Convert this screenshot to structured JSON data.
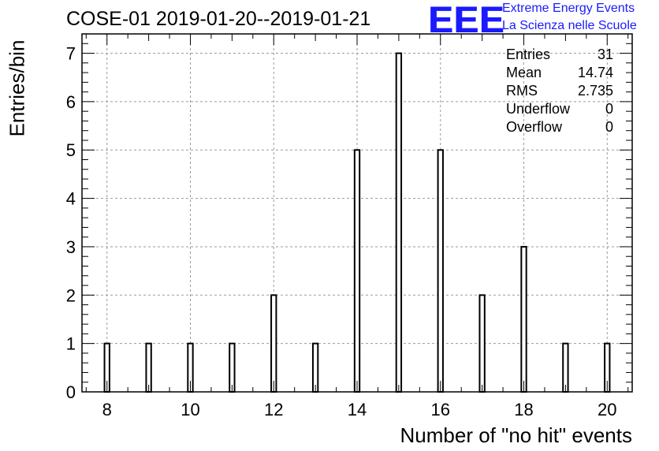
{
  "title": "COSE-01 2019-01-20--2019-01-21",
  "logo": {
    "letters": "EEE",
    "line1": "Extreme Energy Events",
    "line2": "La Scienza nelle Scuole",
    "color": "#1a1aff"
  },
  "stats": {
    "rows": [
      {
        "label": "Entries",
        "value": "31"
      },
      {
        "label": "Mean",
        "value": "14.74"
      },
      {
        "label": "RMS",
        "value": "2.735"
      },
      {
        "label": "Underflow",
        "value": "0"
      },
      {
        "label": "Overflow",
        "value": "0"
      }
    ]
  },
  "chart_data": {
    "type": "bar",
    "title": "COSE-01 2019-01-20--2019-01-21",
    "xlabel": "Number of \"no hit\" events",
    "ylabel": "Entries/bin",
    "x": [
      8,
      9,
      10,
      11,
      12,
      13,
      14,
      15,
      16,
      17,
      18,
      19,
      20
    ],
    "values": [
      1,
      1,
      1,
      1,
      2,
      1,
      5,
      7,
      5,
      2,
      3,
      1,
      1
    ],
    "xlim": [
      7.4,
      20.6
    ],
    "ylim": [
      0,
      7.4
    ],
    "xticks": [
      "8",
      "10",
      "12",
      "14",
      "16",
      "18",
      "20"
    ],
    "yticks": [
      "0",
      "1",
      "2",
      "3",
      "4",
      "5",
      "6",
      "7"
    ],
    "grid": true,
    "bar_color": "#ffffff",
    "edge_color": "#000000"
  }
}
